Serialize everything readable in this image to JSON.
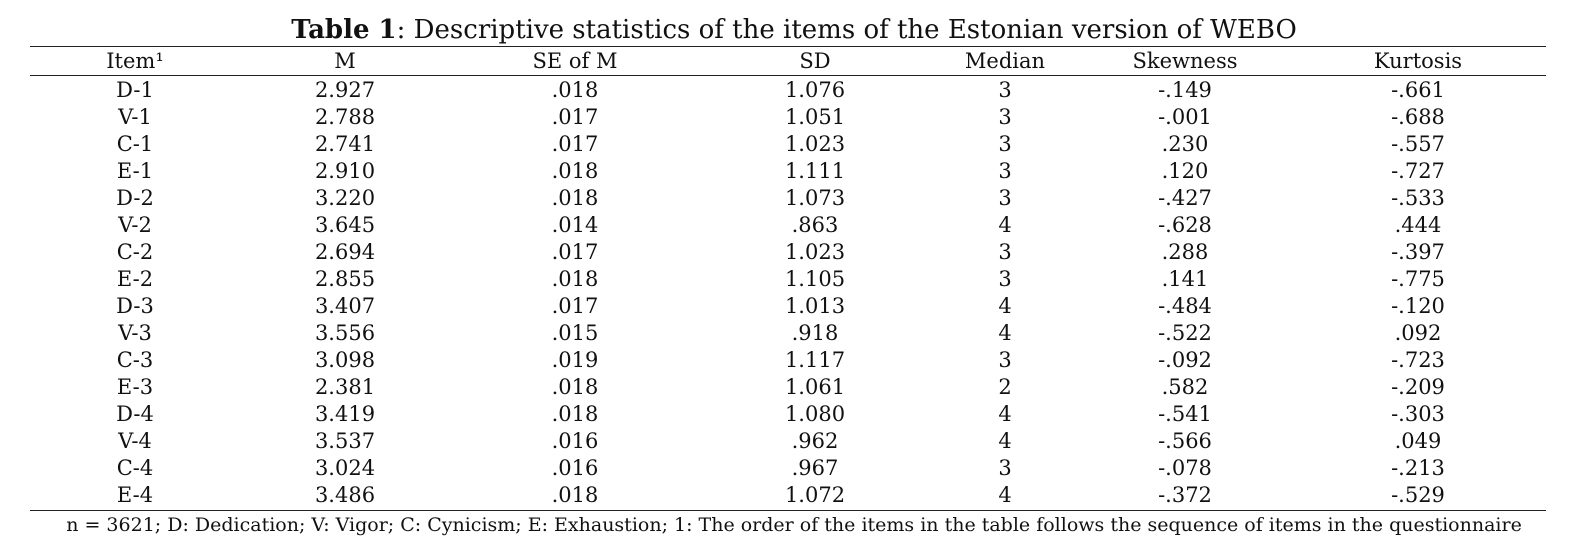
{
  "caption": {
    "label": "Table 1",
    "text": ": Descriptive statistics of the items of the Estonian version of WEBO"
  },
  "table": {
    "headers": [
      "Item¹",
      "M",
      "SE of M",
      "SD",
      "Median",
      "Skewness",
      "Kurtosis"
    ],
    "rows": [
      [
        "D-1",
        "2.927",
        ".018",
        "1.076",
        "3",
        "-.149",
        "-.661"
      ],
      [
        "V-1",
        "2.788",
        ".017",
        "1.051",
        "3",
        "-.001",
        "-.688"
      ],
      [
        "C-1",
        "2.741",
        ".017",
        "1.023",
        "3",
        ".230",
        "-.557"
      ],
      [
        "E-1",
        "2.910",
        ".018",
        "1.111",
        "3",
        ".120",
        "-.727"
      ],
      [
        "D-2",
        "3.220",
        ".018",
        "1.073",
        "3",
        "-.427",
        "-.533"
      ],
      [
        "V-2",
        "3.645",
        ".014",
        ".863",
        "4",
        "-.628",
        ".444"
      ],
      [
        "C-2",
        "2.694",
        ".017",
        "1.023",
        "3",
        ".288",
        "-.397"
      ],
      [
        "E-2",
        "2.855",
        ".018",
        "1.105",
        "3",
        ".141",
        "-.775"
      ],
      [
        "D-3",
        "3.407",
        ".017",
        "1.013",
        "4",
        "-.484",
        "-.120"
      ],
      [
        "V-3",
        "3.556",
        ".015",
        ".918",
        "4",
        "-.522",
        ".092"
      ],
      [
        "C-3",
        "3.098",
        ".019",
        "1.117",
        "3",
        "-.092",
        "-.723"
      ],
      [
        "E-3",
        "2.381",
        ".018",
        "1.061",
        "2",
        ".582",
        "-.209"
      ],
      [
        "D-4",
        "3.419",
        ".018",
        "1.080",
        "4",
        "-.541",
        "-.303"
      ],
      [
        "V-4",
        "3.537",
        ".016",
        ".962",
        "4",
        "-.566",
        ".049"
      ],
      [
        "C-4",
        "3.024",
        ".016",
        ".967",
        "3",
        "-.078",
        "-.213"
      ],
      [
        "E-4",
        "3.486",
        ".018",
        "1.072",
        "4",
        "-.372",
        "-.529"
      ]
    ]
  },
  "footnote": "n = 3621; D: Dedication; V: Vigor; C: Cynicism; E: Exhaustion; 1: The order of the items in the table follows the sequence of items in the questionnaire"
}
